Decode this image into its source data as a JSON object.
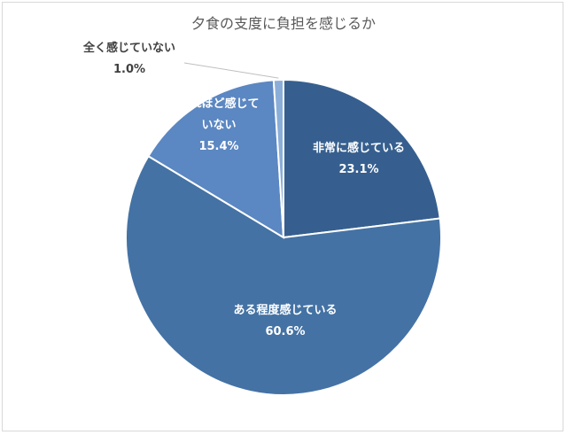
{
  "chart_data": {
    "type": "pie",
    "title": "夕食の支度に負担を感じるか",
    "slices": [
      {
        "label": "非常に感じている",
        "label_lines": [
          "非常に感じている"
        ],
        "value": 23.1,
        "value_label": "23.1%",
        "color": "#365f8f",
        "label_position": "inside"
      },
      {
        "label": "ある程度感じている",
        "label_lines": [
          "ある程度感じている"
        ],
        "value": 60.6,
        "value_label": "60.6%",
        "color": "#4472a4",
        "label_position": "inside"
      },
      {
        "label": "それほど感じていない",
        "label_lines": [
          "それほど感じて",
          "いない"
        ],
        "value": 15.4,
        "value_label": "15.4%",
        "color": "#5b87c2",
        "label_position": "inside"
      },
      {
        "label": "全く感じていない",
        "label_lines": [
          "全く感じていない"
        ],
        "value": 1.0,
        "value_label": "1.0%",
        "color": "#8aaed8",
        "label_position": "outside"
      }
    ],
    "start": "12 o'clock",
    "direction": "clockwise",
    "legend": "none"
  }
}
